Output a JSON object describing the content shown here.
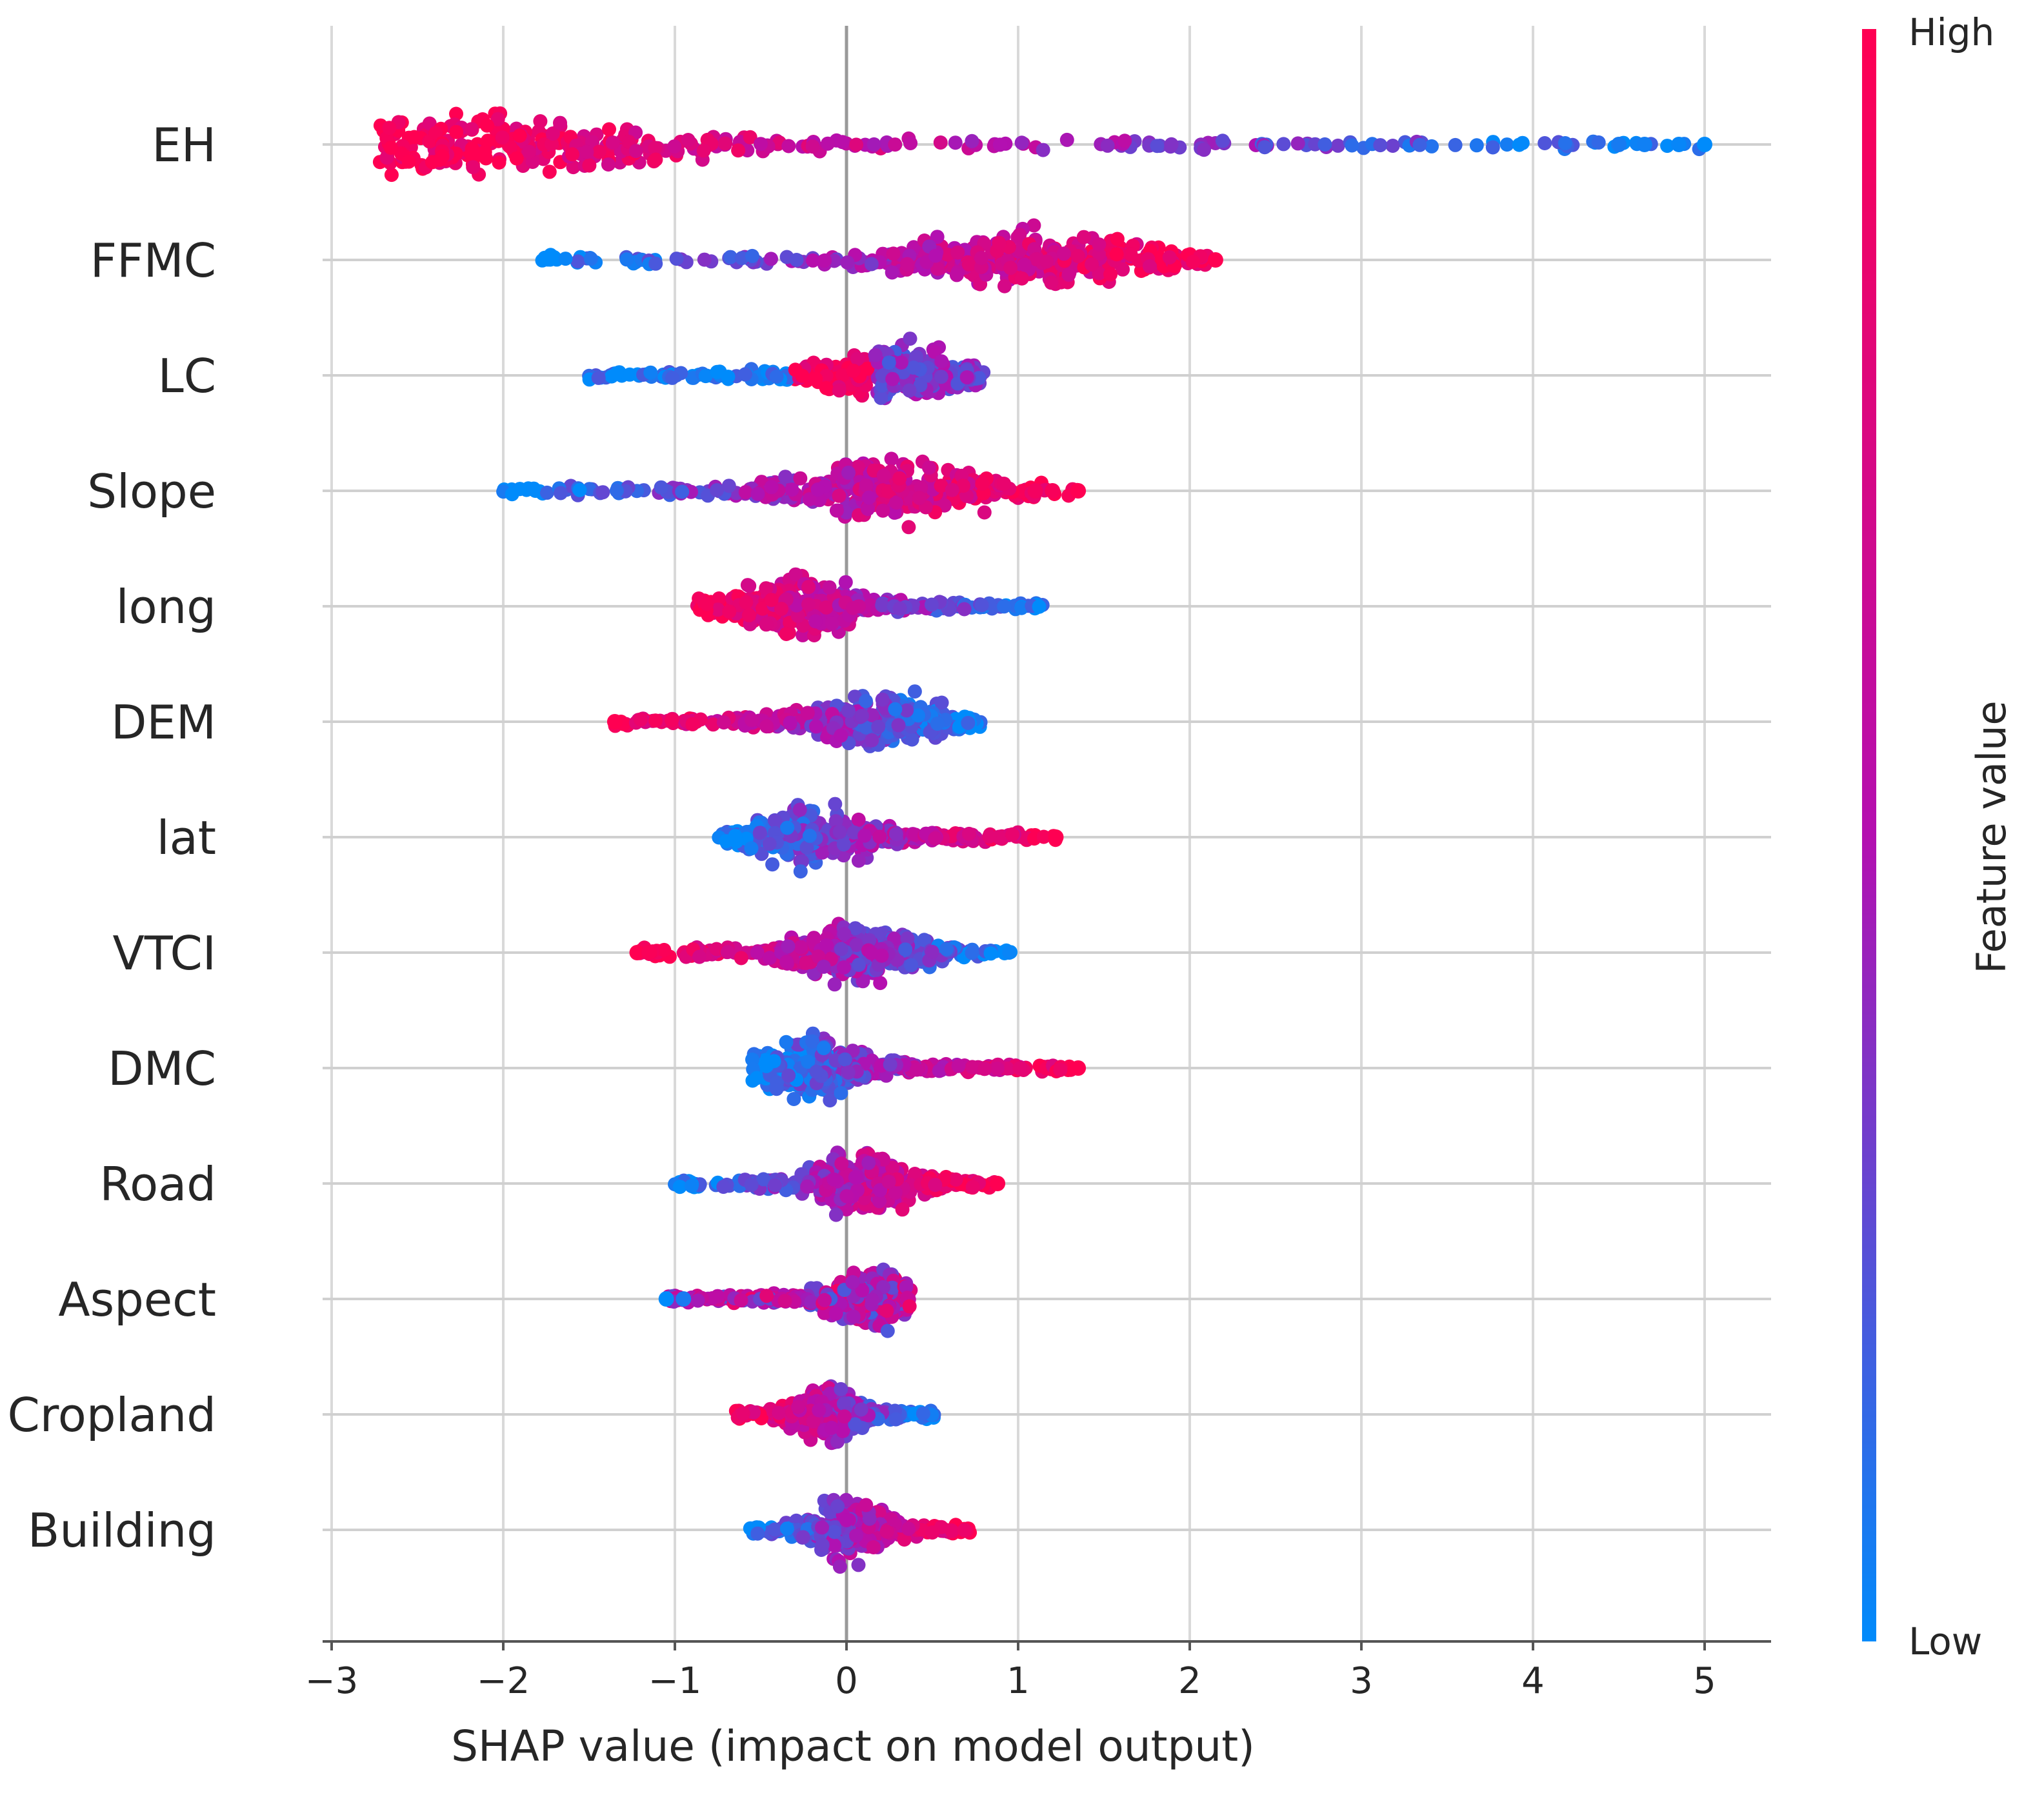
{
  "chart_data": {
    "type": "scatter",
    "subtype": "shap-beeswarm",
    "xlabel": "SHAP value (impact on model output)",
    "ylabel": "",
    "xlim": [
      -3.05,
      5.4
    ],
    "x_ticks": [
      -3,
      -2,
      -1,
      0,
      1,
      2,
      3,
      4,
      5
    ],
    "x_tick_labels": [
      "−3",
      "−2",
      "−1",
      "0",
      "1",
      "2",
      "3",
      "4",
      "5"
    ],
    "grid": true,
    "zero_line": 0,
    "colorbar": {
      "title": "Feature value",
      "high_label": "High",
      "low_label": "Low",
      "high_color": "#ff0052",
      "mid_color": "#b40fb0",
      "low_color": "#008bfb"
    },
    "features": [
      {
        "name": "EH",
        "min": -2.72,
        "max": 5.0,
        "peak": -2.3,
        "color_trend": "decreasing",
        "outliers": [
          4.5,
          4.65,
          4.85,
          5.0
        ]
      },
      {
        "name": "FFMC",
        "min": -1.8,
        "max": 2.15,
        "peak": 1.1,
        "color_trend": "increasing",
        "outliers": [
          2.15
        ]
      },
      {
        "name": "LC",
        "min": -1.5,
        "max": 0.8,
        "peak": 0.3,
        "color_trend": "bimodal",
        "outliers": []
      },
      {
        "name": "Slope",
        "min": -2.0,
        "max": 1.35,
        "peak": 0.25,
        "color_trend": "increasing",
        "outliers": [
          1.1,
          1.2,
          1.35
        ]
      },
      {
        "name": "long",
        "min": -0.9,
        "max": 1.15,
        "peak": -0.3,
        "color_trend": "decreasing",
        "outliers": []
      },
      {
        "name": "DEM",
        "min": -1.35,
        "max": 0.8,
        "peak": 0.2,
        "color_trend": "decreasing",
        "outliers": [
          -1.35
        ]
      },
      {
        "name": "lat",
        "min": -0.75,
        "max": 1.22,
        "peak": -0.2,
        "color_trend": "increasing",
        "outliers": [
          1.22
        ]
      },
      {
        "name": "VTCI",
        "min": -1.22,
        "max": 0.98,
        "peak": 0.05,
        "color_trend": "decreasing",
        "outliers": [
          -1.22,
          -1.15
        ]
      },
      {
        "name": "DMC",
        "min": -0.55,
        "max": 1.35,
        "peak": -0.2,
        "color_trend": "increasing",
        "outliers": [
          1.35
        ]
      },
      {
        "name": "Road",
        "min": -1.0,
        "max": 0.88,
        "peak": 0.1,
        "color_trend": "increasing",
        "outliers": [
          0.88
        ]
      },
      {
        "name": "Aspect",
        "min": -1.05,
        "max": 0.38,
        "peak": 0.15,
        "color_trend": "mixed",
        "outliers": [
          -1.05,
          -0.95
        ]
      },
      {
        "name": "Cropland",
        "min": -0.65,
        "max": 0.52,
        "peak": -0.1,
        "color_trend": "decreasing",
        "outliers": []
      },
      {
        "name": "Building",
        "min": -0.58,
        "max": 0.72,
        "peak": 0.0,
        "color_trend": "increasing",
        "outliers": []
      }
    ]
  }
}
